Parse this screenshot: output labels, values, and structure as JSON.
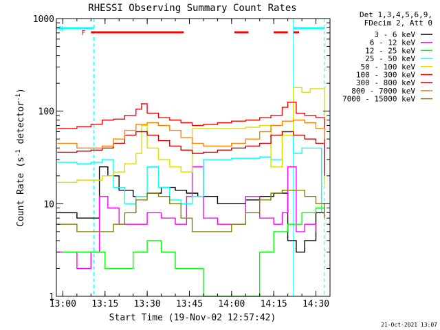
{
  "chart_data": {
    "type": "line",
    "title": "RHESSI Observing Summary Count Rates",
    "xlabel": "Start Time (19-Nov-02 12:57:42)",
    "ylabel_main": "Count Rate (s",
    "ylabel_sup1": "-1",
    "ylabel_mid": " detector",
    "ylabel_sup2": "-1",
    "ylabel_end": ")",
    "y_scale": "log",
    "xlim": [
      "12:57:42",
      "14:35:00"
    ],
    "ylim": [
      1,
      1000
    ],
    "x_ticks": [
      "13:00",
      "13:15",
      "13:30",
      "13:45",
      "14:00",
      "14:15",
      "14:30"
    ],
    "y_ticks": [
      "1",
      "10",
      "100",
      "1000"
    ],
    "legend_header": [
      "Det 1,3,4,5,6,9,",
      "FDecim 2, Att 0"
    ],
    "legend_position": "top-right, outside plot",
    "series": [
      {
        "name": "3 - 6 keV",
        "color": "#000000",
        "x": [
          "12:58",
          "13:05",
          "13:10",
          "13:13",
          "13:16",
          "13:20",
          "13:25",
          "13:30",
          "13:35",
          "13:40",
          "13:44",
          "13:48",
          "13:55",
          "14:00",
          "14:05",
          "14:10",
          "14:15",
          "14:20",
          "14:23",
          "14:26",
          "14:30",
          "14:33"
        ],
        "y": [
          8,
          7,
          7,
          25,
          20,
          14,
          12,
          13,
          15,
          14,
          13,
          12,
          10,
          10,
          11,
          12,
          13,
          4,
          3,
          4,
          8,
          7
        ]
      },
      {
        "name": "6 - 12 keV",
        "color": "#ff00ff",
        "x": [
          "12:58",
          "13:05",
          "13:10",
          "13:13",
          "13:16",
          "13:20",
          "13:25",
          "13:30",
          "13:35",
          "13:40",
          "13:44",
          "13:46",
          "13:50",
          "13:55",
          "14:00",
          "14:05",
          "14:10",
          "14:15",
          "14:18",
          "14:20",
          "14:23",
          "14:26",
          "14:30"
        ],
        "y": [
          3,
          2,
          3,
          12,
          9,
          6,
          6,
          8,
          7,
          6,
          12,
          25,
          7,
          6,
          6,
          12,
          7,
          6,
          8,
          25,
          5,
          6,
          5
        ]
      },
      {
        "name": "12 - 25 keV",
        "color": "#00ff00",
        "x": [
          "13:00",
          "13:05",
          "13:10",
          "13:15",
          "13:20",
          "13:25",
          "13:30",
          "13:35",
          "13:40",
          "13:45",
          "13:50",
          "14:00",
          "14:05",
          "14:10",
          "14:15",
          "14:20",
          "14:25",
          "14:30",
          "14:33"
        ],
        "y": [
          3,
          3,
          3,
          2,
          2,
          3,
          4,
          3,
          2,
          2,
          1,
          1,
          1,
          3,
          5,
          6,
          8,
          9,
          8
        ]
      },
      {
        "name": "25 - 50 keV",
        "color": "#00ffff",
        "x": [
          "12:58",
          "13:05",
          "13:10",
          "13:14",
          "13:18",
          "13:22",
          "13:26",
          "13:30",
          "13:34",
          "13:38",
          "13:42",
          "13:46",
          "13:50",
          "13:55",
          "14:00",
          "14:05",
          "14:10",
          "14:14",
          "14:18",
          "14:22",
          "14:25",
          "14:28",
          "14:32"
        ],
        "y": [
          28,
          27,
          28,
          30,
          15,
          10,
          12,
          25,
          15,
          11,
          10,
          12,
          30,
          30,
          31,
          31,
          32,
          30,
          60,
          35,
          40,
          40,
          8
        ]
      },
      {
        "name": "50 - 100 keV",
        "color": "#dddd00",
        "x": [
          "12:58",
          "13:05",
          "13:10",
          "13:14",
          "13:18",
          "13:22",
          "13:26",
          "13:28",
          "13:30",
          "13:34",
          "13:38",
          "13:42",
          "13:46",
          "13:50",
          "13:55",
          "14:00",
          "14:05",
          "14:10",
          "14:14",
          "14:18",
          "14:22",
          "14:25",
          "14:28",
          "14:33"
        ],
        "y": [
          17,
          18,
          18,
          20,
          22,
          27,
          35,
          70,
          40,
          30,
          25,
          22,
          65,
          65,
          65,
          65,
          67,
          70,
          25,
          55,
          180,
          160,
          175,
          16
        ]
      },
      {
        "name": "100 - 300 keV",
        "color": "#ff0000",
        "x": [
          "12:58",
          "13:05",
          "13:10",
          "13:14",
          "13:18",
          "13:22",
          "13:26",
          "13:28",
          "13:30",
          "13:34",
          "13:38",
          "13:42",
          "13:46",
          "13:50",
          "13:55",
          "14:00",
          "14:05",
          "14:10",
          "14:14",
          "14:18",
          "14:20",
          "14:23",
          "14:26",
          "14:30",
          "14:33"
        ],
        "y": [
          65,
          68,
          72,
          80,
          82,
          90,
          105,
          120,
          95,
          85,
          80,
          75,
          70,
          72,
          75,
          78,
          80,
          85,
          90,
          110,
          125,
          95,
          90,
          85,
          22
        ]
      },
      {
        "name": "300 - 800 keV",
        "color": "#cc0000",
        "x": [
          "12:58",
          "13:05",
          "13:10",
          "13:14",
          "13:18",
          "13:22",
          "13:26",
          "13:30",
          "13:34",
          "13:38",
          "13:42",
          "13:46",
          "13:50",
          "13:55",
          "14:00",
          "14:05",
          "14:10",
          "14:14",
          "14:18",
          "14:22",
          "14:26",
          "14:30",
          "14:33"
        ],
        "y": [
          36,
          37,
          38,
          40,
          45,
          55,
          60,
          55,
          48,
          42,
          38,
          35,
          36,
          38,
          40,
          42,
          45,
          55,
          60,
          55,
          50,
          45,
          20
        ]
      },
      {
        "name": "800 - 7000 keV",
        "color": "#ff8000",
        "x": [
          "12:58",
          "13:05",
          "13:10",
          "13:14",
          "13:18",
          "13:22",
          "13:26",
          "13:30",
          "13:34",
          "13:38",
          "13:42",
          "13:46",
          "13:50",
          "13:55",
          "14:00",
          "14:05",
          "14:10",
          "14:14",
          "14:18",
          "14:22",
          "14:26",
          "14:30",
          "14:33"
        ],
        "y": [
          45,
          40,
          40,
          42,
          50,
          62,
          72,
          75,
          70,
          62,
          52,
          45,
          42,
          42,
          45,
          50,
          60,
          70,
          78,
          80,
          75,
          65,
          50
        ]
      },
      {
        "name": "7000 - 15000 keV",
        "color": "#808000",
        "x": [
          "12:58",
          "13:05",
          "13:10",
          "13:14",
          "13:18",
          "13:22",
          "13:26",
          "13:30",
          "13:34",
          "13:38",
          "13:42",
          "13:46",
          "13:50",
          "13:55",
          "14:00",
          "14:05",
          "14:10",
          "14:14",
          "14:18",
          "14:22",
          "14:26",
          "14:30",
          "14:33"
        ],
        "y": [
          6,
          5,
          5,
          5,
          6,
          8,
          11,
          13,
          12,
          10,
          7,
          5,
          5,
          5,
          6,
          8,
          11,
          13,
          14,
          14,
          12,
          10,
          7
        ]
      }
    ],
    "state_bars": [
      {
        "label": "F",
        "color": "#ff0000",
        "segments": [
          [
            "13:10",
            "13:43"
          ],
          [
            "14:01",
            "14:06"
          ],
          [
            "14:15",
            "14:20"
          ],
          [
            "14:22",
            "14:24"
          ]
        ]
      },
      {
        "label": "N",
        "color": "#00ffff",
        "segments": [
          [
            "12:57:42",
            "13:11"
          ],
          [
            "14:22",
            "14:33"
          ]
        ]
      }
    ],
    "vertical_markers": [
      {
        "time": "12:57:42",
        "color": "#00ffff",
        "style": "solid"
      },
      {
        "time": "13:11",
        "color": "#00ffff",
        "style": "dashed"
      },
      {
        "time": "14:22",
        "color": "#00ffff",
        "style": "solid"
      },
      {
        "time": "14:33",
        "color": "#00ffff",
        "style": "dashed"
      }
    ]
  },
  "timestamp": "21-Oct-2021 13:07"
}
